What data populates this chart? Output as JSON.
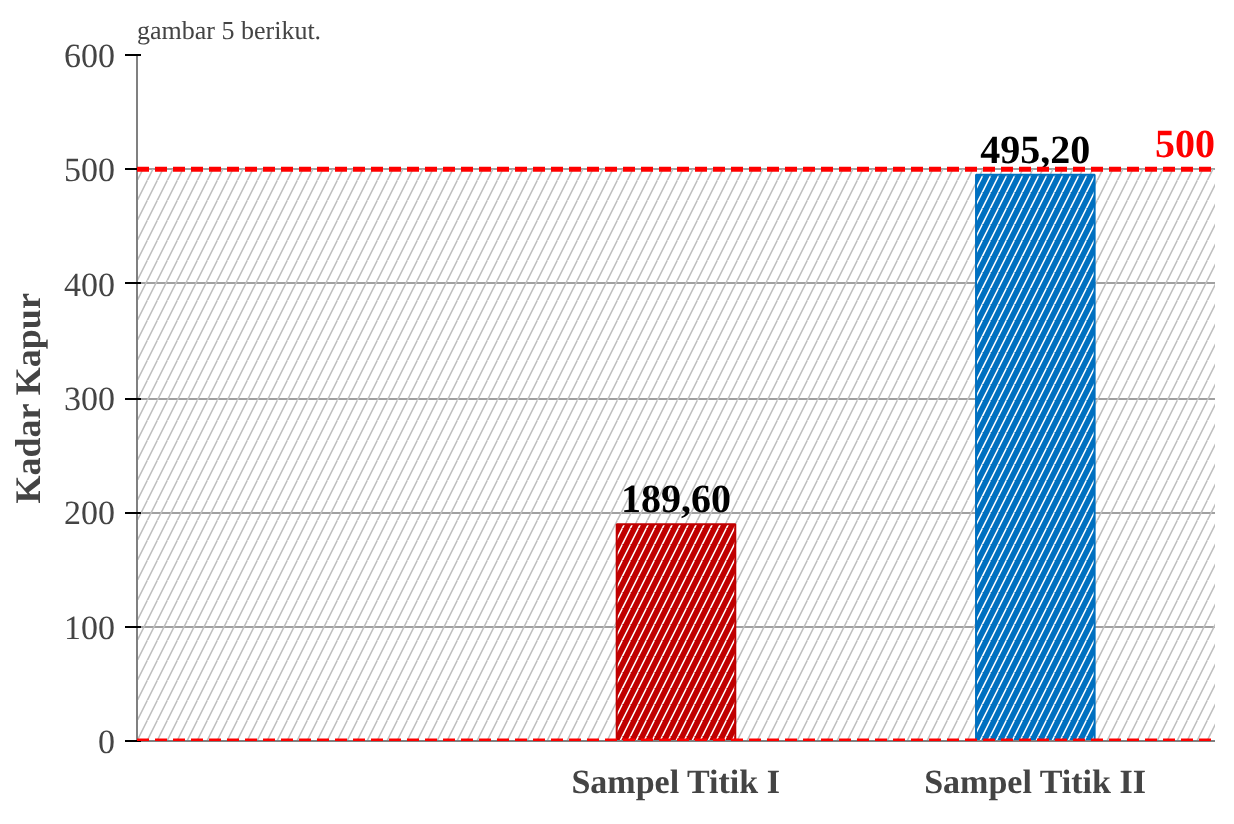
{
  "chart_data": {
    "type": "bar",
    "annotations": [
      "gambar 5 berikut."
    ],
    "ylabel": "Kadar Kapur",
    "categories": [
      null,
      "Sampel Titik I",
      "Sampel Titik II"
    ],
    "values": [
      null,
      189.6,
      495.2
    ],
    "colors": [
      "#c00000",
      "#c00000",
      "#0070c0"
    ],
    "value_labels": [
      null,
      "189,60",
      "495,20"
    ],
    "ylim": [
      0,
      600
    ],
    "yticks": [
      0,
      100,
      200,
      300,
      400,
      500,
      600
    ],
    "grid": "y",
    "bands": [
      {
        "axis": "y",
        "from": 0,
        "to": 500,
        "color": "#bfbfbf"
      }
    ],
    "ref_lines": [
      {
        "axis": "y",
        "value": 0,
        "color": "#ff0000",
        "line_style": "dashed"
      },
      {
        "axis": "y",
        "value": 500,
        "label": "500",
        "color": "#ff0000",
        "line_style": "dashed"
      }
    ]
  }
}
